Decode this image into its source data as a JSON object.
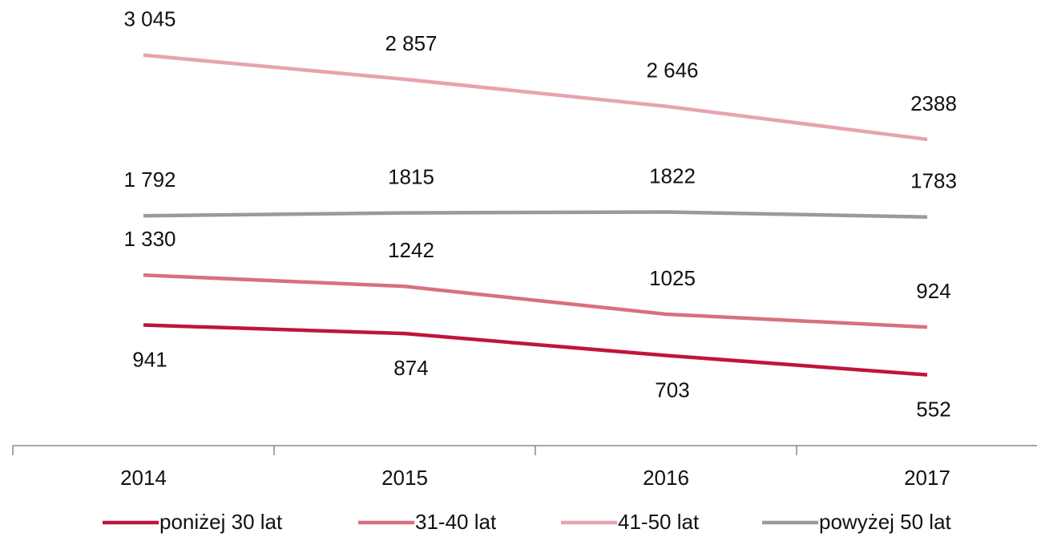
{
  "chart_data": {
    "type": "line",
    "categories": [
      "2014",
      "2015",
      "2016",
      "2017"
    ],
    "series": [
      {
        "name": "poniżej 30 lat",
        "color": "#c0143c",
        "values": [
          941,
          874,
          703,
          552
        ],
        "value_labels": [
          "941",
          "874",
          "703",
          "552"
        ]
      },
      {
        "name": "31-40 lat",
        "color": "#d9707f",
        "values": [
          1330,
          1242,
          1025,
          924
        ],
        "value_labels": [
          "1 330",
          "1242",
          "1025",
          "924"
        ]
      },
      {
        "name": "41-50 lat",
        "color": "#e8a3ad",
        "values": [
          3045,
          2857,
          2646,
          2388
        ],
        "value_labels": [
          "3 045",
          "2 857",
          "2 646",
          "2388"
        ]
      },
      {
        "name": "powyżej 50 lat",
        "color": "#9a9a9a",
        "values": [
          1792,
          1815,
          1822,
          1783
        ],
        "value_labels": [
          "1 792",
          "1815",
          "1822",
          "1783"
        ]
      }
    ],
    "ylim": [
      0,
      3500
    ],
    "legend": "bottom"
  }
}
